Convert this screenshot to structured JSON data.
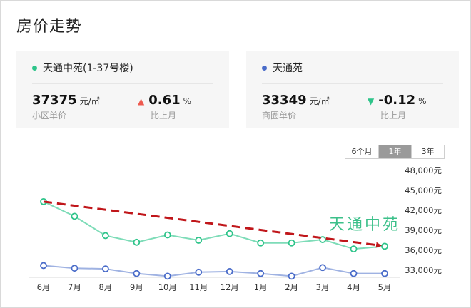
{
  "page": {
    "title": "房价走势"
  },
  "cards": [
    {
      "name": "天通中苑(1-37号楼)",
      "dot_color": "#2ec48a",
      "price": "37375",
      "price_unit": "元/㎡",
      "price_label": "小区单价",
      "change": "0.61",
      "change_unit": "%",
      "change_label": "比上月",
      "change_arrow": "▲",
      "arrow_color": "#ee5a4f"
    },
    {
      "name": "天通苑",
      "dot_color": "#4a6cc9",
      "price": "33349",
      "price_unit": "元/㎡",
      "price_label": "商圈单价",
      "change": "-0.12",
      "change_unit": "%",
      "change_label": "比上月",
      "change_arrow": "▼",
      "arrow_color": "#2ec48a"
    }
  ],
  "tabs": [
    "6个月",
    "1年",
    "3年"
  ],
  "active_tab": "1年",
  "chart_data": {
    "type": "line",
    "categories": [
      "6月",
      "7月",
      "8月",
      "9月",
      "10月",
      "11月",
      "12月",
      "1月",
      "2月",
      "3月",
      "4月",
      "5月"
    ],
    "yticks": [
      "48,000元",
      "45,000元",
      "42,000元",
      "39,000元",
      "36,000元",
      "33,000元"
    ],
    "ylim": [
      31000,
      48000
    ],
    "series": [
      {
        "color": "#7edcb8",
        "marker_color": "#2ec48a",
        "values": [
          43300,
          41100,
          38200,
          37200,
          38300,
          37500,
          38500,
          37100,
          37100,
          37600,
          36200,
          36600
        ]
      },
      {
        "color": "#9fb2e2",
        "marker_color": "#4a6cc9",
        "values": [
          33700,
          33300,
          33200,
          32500,
          32100,
          32700,
          32800,
          32500,
          32100,
          33400,
          32500,
          32500
        ]
      }
    ],
    "annotation": "天通中苑",
    "trend_color": "#c0161a"
  }
}
